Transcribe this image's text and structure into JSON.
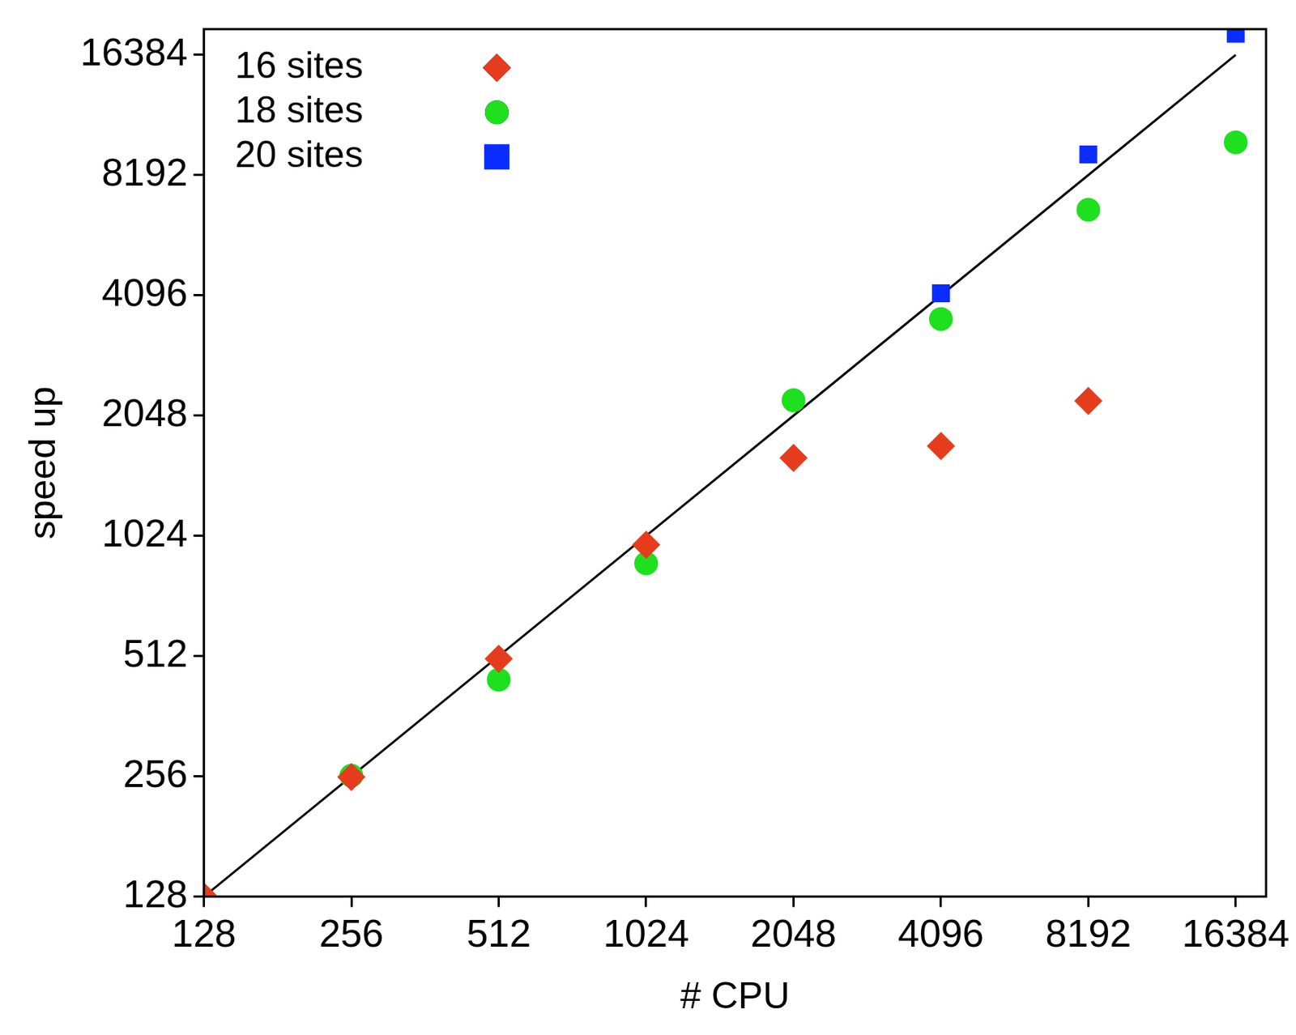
{
  "chart_data": {
    "type": "scatter",
    "x_label": "# CPU",
    "y_label": "speed up",
    "x": [
      128,
      256,
      512,
      1024,
      2048,
      4096,
      8192,
      16384
    ],
    "series": [
      {
        "name": "16 sites",
        "color": "#e63c1e",
        "marker": "diamond",
        "values": [
          128,
          255,
          504,
          973,
          1604,
          1719,
          2228,
          null
        ]
      },
      {
        "name": "18 sites",
        "color": "#1ee01e",
        "marker": "circle",
        "values": [
          null,
          257,
          447,
          874,
          2237,
          3573,
          6706,
          9896
        ]
      },
      {
        "name": "20 sites",
        "color": "#0a2cff",
        "marker": "square",
        "values": [
          null,
          null,
          null,
          null,
          null,
          4146,
          9230,
          18500
        ]
      },
      {
        "type": "line",
        "color": "#000000",
        "line_style": "solid",
        "values": [
          128,
          256,
          512,
          1024,
          2048,
          4096,
          8192,
          16384
        ]
      }
    ],
    "log": true,
    "xlim": [
      128,
      18900
    ],
    "ylim": [
      128,
      19000
    ],
    "xticks": [
      128,
      256,
      512,
      1024,
      2048,
      4096,
      8192,
      16384
    ],
    "yticks": [
      128,
      256,
      512,
      1024,
      2048,
      4096,
      8192,
      16384
    ],
    "grid": false,
    "legend": "upper left"
  }
}
